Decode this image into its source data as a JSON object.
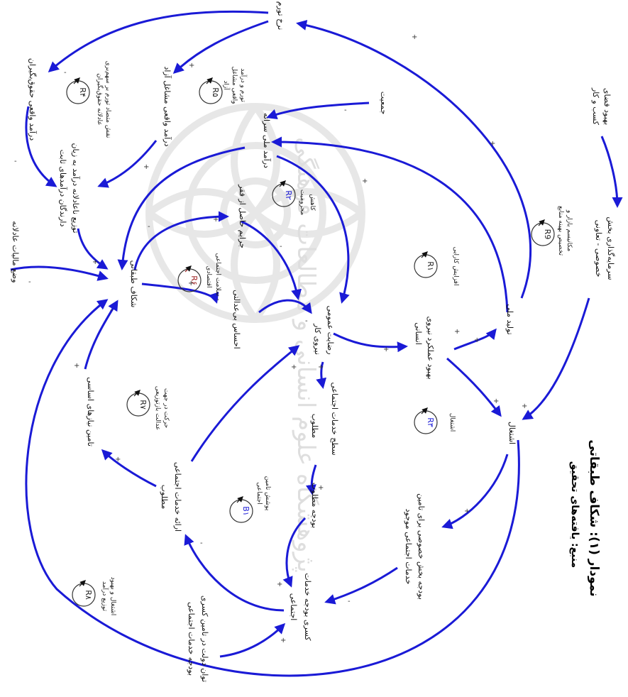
{
  "title": "نمودار (۱): شکاف طبقاتی",
  "source": "منبع: یافته‌های تحقیق",
  "watermark": "پژوهشگاه علوم انسانی و مطالعات فرهنگی",
  "nodes": {
    "inflation": "نرخ تورم",
    "real_income_wage": "درآمد واقعی حقوق‌بگیران",
    "real_income_free": "درآمد واقعی مشاغل آزاد",
    "per_capita_income": "درآمد ملی سرانه",
    "population": "جمعیت",
    "business_env_1": "بهبود فضای",
    "business_env_2": "کسب و کار",
    "unequal_dist_1": "توزیع ناعادلانه درآمد به زیان",
    "unequal_dist_2": "دارندگان درآمدهای ثابت",
    "fair_tax": "وضع مالیات عادلانه",
    "poverty_crimes": "جرایم حاصل از فقر",
    "class_gap": "شکاف طبقاتی",
    "injustice_feel": "احساس بی‌عدالتی",
    "public_satisfaction": "رضایت عمومی",
    "workforce_1": "بهبود عملکرد نیروی",
    "workforce_2": "انسانی",
    "national_production": "تولید ملی",
    "private_investment_1": "سرمایه‌گذاری بخش",
    "private_investment_2": "خصوصی - تعاونی",
    "workforce_label": "نیروی کار",
    "basic_needs": "تامین نیازهای اساسی",
    "desired_services_1": "سطح خدمات اجتماعی",
    "desired_services_2": "مطلوب",
    "employment": "اشتغال",
    "desired_budget": "بودجه مطلوب",
    "provide_services_1": "ارائه خدمات اجتماعی",
    "provide_services_2": "مطلوب",
    "budget_deficit_1": "کسری بودجه خدمات",
    "budget_deficit_2": "اجتماعی",
    "gov_capacity_1": "توان دولت در تامین کسری",
    "gov_capacity_2": "بودجه خدمات اجتماعی",
    "private_budget_1": "بودجه بخش خصوصی برای تامین",
    "private_budget_2": "خدمات اجتماعی موجود"
  },
  "loops": [
    {
      "id": "R4",
      "label": "R۴",
      "desc": [
        "نقش متضاد تورم بر سهم‌بری",
        "عادلانه حقوق‌بگیران"
      ],
      "color": "#222222"
    },
    {
      "id": "R5",
      "label": "R۵",
      "desc": [
        "تورم و درآمد",
        "واقعی مشاغل",
        "آزاد"
      ],
      "color": "#222222"
    },
    {
      "id": "R2",
      "label": "R۲",
      "desc": [
        "کاهش",
        "محرومیت"
      ],
      "color": "#1a1ad6"
    },
    {
      "id": "R1",
      "label": "R۱",
      "desc": [
        "افزایش کارایی"
      ],
      "color": "#222222"
    },
    {
      "id": "R9",
      "label": "R9",
      "desc": [
        "مکانیسم بازار و",
        "تخصیص بهینه منابع"
      ],
      "color": "#222222"
    },
    {
      "id": "R6",
      "label": "R۶",
      "desc": [
        "سلامت اجتماعی -",
        "اقتصادی"
      ],
      "color": "#9a1b1b"
    },
    {
      "id": "R7",
      "label": "R۷",
      "desc": [
        "حرکت در جهت",
        "عدالت بازتوزیعی"
      ],
      "color": "#222222"
    },
    {
      "id": "R3",
      "label": "R۳",
      "desc": [
        "اشتغال"
      ],
      "color": "#1a1ad6"
    },
    {
      "id": "B1",
      "label": "B۱",
      "desc": [
        "پوشش تامین",
        "اجتماعی"
      ],
      "color": "#1a1ad6"
    },
    {
      "id": "R8",
      "label": "R۸",
      "desc": [
        "اشتغال و بهبود",
        "توزیع درآمد"
      ],
      "color": "#222222"
    }
  ],
  "signs": {
    "plus": "+",
    "minus": "-"
  }
}
